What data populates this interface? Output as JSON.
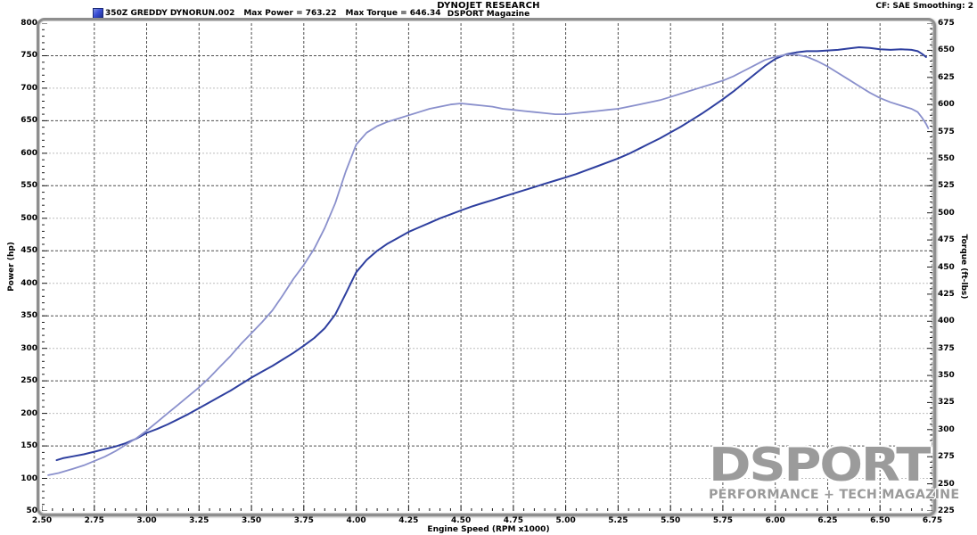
{
  "header": {
    "title": "DYNOJET RESEARCH",
    "subtitle": "DSPORT Magazine",
    "cf": "CF: SAE  Smoothing: 2"
  },
  "legend": {
    "run": "350Z GREDDY DYNORUN.002",
    "max_power": "Max Power = 763.22",
    "max_torque": "Max Torque = 646.34",
    "swatch_color": "#3b4fd8"
  },
  "watermark": {
    "big": "DSPORT",
    "small": "PERFORMANCE + TECH MAGAZINE"
  },
  "chart_data": {
    "type": "line",
    "title": "DYNOJET RESEARCH",
    "subtitle": "DSPORT Magazine",
    "xlabel": "Engine Speed (RPM x1000)",
    "ylabel_left": "Power (hp)",
    "ylabel_right": "Torque (ft-lbs)",
    "x_axis": {
      "min": 2.5,
      "max": 6.75,
      "major": 0.25,
      "minor": 0.05
    },
    "y_left": {
      "min": 50,
      "max": 800,
      "major": 50,
      "minor": 10
    },
    "y_right": {
      "min": 225,
      "max": 675,
      "major": 25,
      "minor": 5
    },
    "grid": {
      "v_color": "#4f4f4f",
      "h_dark_color": "#4f4f4f",
      "h_light_color": "#bdbdbd"
    },
    "legend_position": "top-left",
    "series": [
      {
        "name": "Power",
        "axis": "left",
        "units": "hp",
        "max": 763.22,
        "color": "#2e3f9f",
        "width": 2,
        "points": [
          [
            2.57,
            128
          ],
          [
            2.6,
            131
          ],
          [
            2.65,
            134
          ],
          [
            2.7,
            137
          ],
          [
            2.75,
            141
          ],
          [
            2.8,
            145
          ],
          [
            2.85,
            149
          ],
          [
            2.9,
            154
          ],
          [
            2.95,
            161
          ],
          [
            3.0,
            170
          ],
          [
            3.05,
            176
          ],
          [
            3.1,
            183
          ],
          [
            3.15,
            191
          ],
          [
            3.2,
            199
          ],
          [
            3.25,
            208
          ],
          [
            3.3,
            217
          ],
          [
            3.35,
            226
          ],
          [
            3.4,
            235
          ],
          [
            3.45,
            245
          ],
          [
            3.5,
            255
          ],
          [
            3.55,
            264
          ],
          [
            3.6,
            273
          ],
          [
            3.65,
            283
          ],
          [
            3.7,
            293
          ],
          [
            3.75,
            304
          ],
          [
            3.8,
            316
          ],
          [
            3.85,
            331
          ],
          [
            3.9,
            352
          ],
          [
            3.95,
            384
          ],
          [
            4.0,
            417
          ],
          [
            4.05,
            436
          ],
          [
            4.1,
            450
          ],
          [
            4.15,
            461
          ],
          [
            4.2,
            470
          ],
          [
            4.25,
            479
          ],
          [
            4.3,
            486
          ],
          [
            4.35,
            493
          ],
          [
            4.4,
            500
          ],
          [
            4.45,
            506
          ],
          [
            4.5,
            512
          ],
          [
            4.55,
            518
          ],
          [
            4.6,
            523
          ],
          [
            4.65,
            528
          ],
          [
            4.7,
            533
          ],
          [
            4.75,
            538
          ],
          [
            4.8,
            543
          ],
          [
            4.85,
            548
          ],
          [
            4.9,
            553
          ],
          [
            4.95,
            558
          ],
          [
            5.0,
            563
          ],
          [
            5.05,
            568
          ],
          [
            5.1,
            574
          ],
          [
            5.15,
            580
          ],
          [
            5.2,
            586
          ],
          [
            5.25,
            592
          ],
          [
            5.3,
            599
          ],
          [
            5.35,
            607
          ],
          [
            5.4,
            615
          ],
          [
            5.45,
            623
          ],
          [
            5.5,
            632
          ],
          [
            5.55,
            641
          ],
          [
            5.6,
            651
          ],
          [
            5.65,
            661
          ],
          [
            5.7,
            672
          ],
          [
            5.75,
            683
          ],
          [
            5.8,
            695
          ],
          [
            5.85,
            708
          ],
          [
            5.9,
            721
          ],
          [
            5.95,
            734
          ],
          [
            6.0,
            745
          ],
          [
            6.05,
            752
          ],
          [
            6.1,
            755
          ],
          [
            6.15,
            757
          ],
          [
            6.2,
            757
          ],
          [
            6.25,
            758
          ],
          [
            6.3,
            759
          ],
          [
            6.35,
            761
          ],
          [
            6.4,
            763
          ],
          [
            6.45,
            762
          ],
          [
            6.5,
            760
          ],
          [
            6.55,
            759
          ],
          [
            6.6,
            760
          ],
          [
            6.65,
            759
          ],
          [
            6.68,
            757
          ],
          [
            6.7,
            753
          ],
          [
            6.72,
            748
          ]
        ]
      },
      {
        "name": "Torque",
        "axis": "right",
        "units": "ft-lbs",
        "max": 646.34,
        "color": "#8a90cc",
        "width": 1.8,
        "points": [
          [
            2.53,
            258
          ],
          [
            2.58,
            260
          ],
          [
            2.65,
            264
          ],
          [
            2.7,
            267
          ],
          [
            2.75,
            271
          ],
          [
            2.8,
            275
          ],
          [
            2.85,
            280
          ],
          [
            2.9,
            286
          ],
          [
            2.95,
            292
          ],
          [
            3.0,
            299
          ],
          [
            3.05,
            307
          ],
          [
            3.1,
            315
          ],
          [
            3.15,
            323
          ],
          [
            3.2,
            331
          ],
          [
            3.25,
            339
          ],
          [
            3.3,
            348
          ],
          [
            3.35,
            358
          ],
          [
            3.4,
            368
          ],
          [
            3.45,
            379
          ],
          [
            3.5,
            389
          ],
          [
            3.55,
            399
          ],
          [
            3.6,
            410
          ],
          [
            3.65,
            424
          ],
          [
            3.7,
            439
          ],
          [
            3.75,
            452
          ],
          [
            3.8,
            467
          ],
          [
            3.85,
            486
          ],
          [
            3.9,
            509
          ],
          [
            3.95,
            538
          ],
          [
            4.0,
            563
          ],
          [
            4.05,
            574
          ],
          [
            4.1,
            580
          ],
          [
            4.15,
            584
          ],
          [
            4.2,
            587
          ],
          [
            4.25,
            590
          ],
          [
            4.3,
            593
          ],
          [
            4.35,
            596
          ],
          [
            4.4,
            598
          ],
          [
            4.45,
            600
          ],
          [
            4.5,
            601
          ],
          [
            4.55,
            600
          ],
          [
            4.6,
            599
          ],
          [
            4.65,
            598
          ],
          [
            4.7,
            596
          ],
          [
            4.75,
            595
          ],
          [
            4.8,
            594
          ],
          [
            4.85,
            593
          ],
          [
            4.9,
            592
          ],
          [
            4.95,
            591
          ],
          [
            5.0,
            591
          ],
          [
            5.05,
            592
          ],
          [
            5.1,
            593
          ],
          [
            5.15,
            594
          ],
          [
            5.2,
            595
          ],
          [
            5.25,
            596
          ],
          [
            5.3,
            598
          ],
          [
            5.35,
            600
          ],
          [
            5.4,
            602
          ],
          [
            5.45,
            604
          ],
          [
            5.5,
            607
          ],
          [
            5.55,
            610
          ],
          [
            5.6,
            613
          ],
          [
            5.65,
            616
          ],
          [
            5.7,
            619
          ],
          [
            5.75,
            622
          ],
          [
            5.8,
            626
          ],
          [
            5.85,
            631
          ],
          [
            5.9,
            636
          ],
          [
            5.95,
            641
          ],
          [
            6.0,
            644
          ],
          [
            6.05,
            646
          ],
          [
            6.1,
            646
          ],
          [
            6.15,
            644
          ],
          [
            6.2,
            640
          ],
          [
            6.25,
            635
          ],
          [
            6.3,
            629
          ],
          [
            6.35,
            623
          ],
          [
            6.4,
            617
          ],
          [
            6.45,
            611
          ],
          [
            6.5,
            606
          ],
          [
            6.55,
            602
          ],
          [
            6.6,
            599
          ],
          [
            6.65,
            596
          ],
          [
            6.68,
            593
          ],
          [
            6.7,
            588
          ],
          [
            6.72,
            582
          ],
          [
            6.73,
            578
          ]
        ]
      }
    ]
  }
}
